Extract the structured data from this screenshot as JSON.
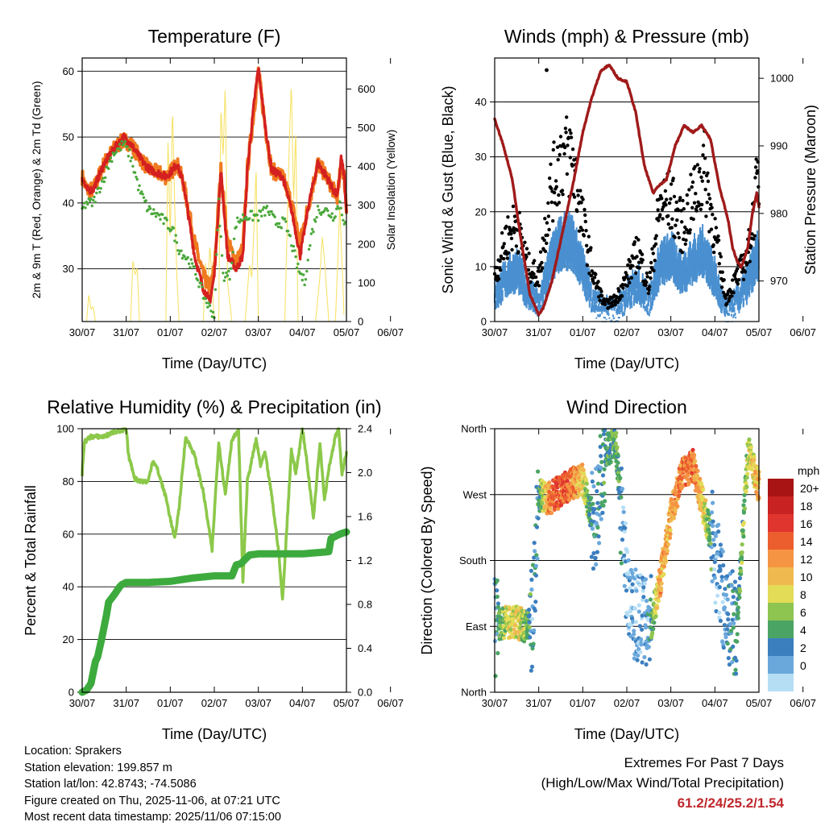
{
  "colors": {
    "temp_2m": "#d42020",
    "temp_9m": "#f07a20",
    "dewpoint": "#4aa83a",
    "insolation": "#f7e36a",
    "wind": "#4a90d0",
    "gust": "#000000",
    "pressure": "#a01a1a",
    "rh": "#8cc84a",
    "rain": "#3daa3d"
  },
  "x_ticks": [
    "30/07",
    "31/07",
    "01/07",
    "02/07",
    "03/07",
    "04/07",
    "05/07",
    "06/07"
  ],
  "x_label": "Time (Day/UTC)",
  "chart_data": [
    {
      "id": "temperature",
      "type": "line",
      "title": "Temperature (F)",
      "ylabel_left": "2m & 9m T (Red, Orange) & 2m Td (Green)",
      "ylabel_right": "Solar Insolation (Yellow)",
      "ylim_left": [
        22,
        62
      ],
      "ylim_right": [
        0,
        680
      ],
      "yticks_left": [
        30,
        40,
        50,
        60
      ],
      "yticks_right": [
        0,
        100,
        200,
        300,
        400,
        500,
        600
      ],
      "series": [
        {
          "name": "2m T",
          "x": [
            0,
            0.1,
            0.25,
            0.5,
            0.75,
            0.95,
            1.1,
            1.25,
            1.4,
            1.55,
            1.75,
            1.9,
            2.05,
            2.15,
            2.3,
            2.55,
            2.75,
            2.9,
            3.0,
            3.15,
            3.3,
            3.5,
            3.65,
            3.75,
            3.9,
            4.0,
            4.15,
            4.3,
            4.55,
            4.75,
            4.95,
            5.15,
            5.35,
            5.55,
            5.7,
            5.8,
            5.88,
            5.95,
            6.0
          ],
          "values": [
            44,
            42,
            42,
            46,
            48.5,
            50,
            49,
            47.5,
            46,
            45,
            44.5,
            44,
            45,
            46,
            43,
            32,
            27,
            25,
            29,
            45,
            32,
            30,
            32,
            45,
            55,
            60.5,
            52,
            45,
            44,
            39,
            32,
            40,
            46,
            44,
            42,
            41,
            47,
            44,
            38
          ]
        },
        {
          "name": "9m T",
          "x": [
            0,
            0.1,
            0.25,
            0.5,
            0.75,
            0.95,
            1.1,
            1.25,
            1.4,
            1.55,
            1.75,
            1.9,
            2.05,
            2.15,
            2.3,
            2.55,
            2.75,
            2.9,
            3.0,
            3.15,
            3.3,
            3.5,
            3.65,
            3.75,
            3.9,
            4.0,
            4.15,
            4.3,
            4.55,
            4.75,
            4.95,
            5.15,
            5.35,
            5.55,
            5.7,
            5.8,
            5.88,
            5.95,
            6.0
          ],
          "values": [
            44,
            42,
            42,
            46,
            48.5,
            49.5,
            49,
            47.5,
            46,
            45,
            44.5,
            44,
            45,
            46,
            43,
            34,
            29,
            27,
            30,
            45,
            34,
            31,
            33,
            45,
            54,
            60,
            52,
            45,
            44,
            40,
            34,
            40,
            46,
            44,
            42,
            41,
            46,
            44,
            39
          ]
        },
        {
          "name": "2m Td",
          "x": [
            0,
            0.1,
            0.25,
            0.5,
            0.7,
            0.95,
            1.1,
            1.3,
            1.5,
            1.75,
            1.9,
            2.05,
            2.2,
            2.45,
            2.6,
            2.75,
            2.9,
            3.0,
            3.1,
            3.2,
            3.35,
            3.5,
            3.7,
            3.85,
            4.0,
            4.2,
            4.4,
            4.6,
            4.75,
            4.9,
            5.05,
            5.2,
            5.35,
            5.5,
            5.7,
            5.85,
            6.0
          ],
          "values": [
            39,
            40,
            40,
            44,
            47.5,
            49,
            47,
            42,
            39,
            38,
            37,
            36,
            33,
            31,
            29,
            26,
            24,
            23,
            40,
            29,
            29,
            37,
            38,
            38,
            38,
            39,
            37,
            37,
            34,
            30,
            28,
            35,
            39,
            39,
            38,
            40,
            36
          ]
        },
        {
          "name": "Solar Insolation",
          "axis": "right",
          "x": [
            0.1,
            0.15,
            0.2,
            0.25,
            0.3,
            1.1,
            1.15,
            1.2,
            1.25,
            1.3,
            1.9,
            1.95,
            2.0,
            2.05,
            2.1,
            2.15,
            2.2,
            2.45,
            2.75,
            2.8,
            2.85,
            2.9,
            3.0,
            3.1,
            3.15,
            3.2,
            3.25,
            3.3,
            3.4,
            3.7,
            3.8,
            3.85,
            3.9,
            3.95,
            4.0,
            4.1,
            4.3,
            4.6,
            4.7,
            4.75,
            4.8,
            4.85,
            4.9,
            5.3,
            5.4,
            5.45,
            5.5,
            5.6,
            5.75,
            5.85,
            5.95
          ],
          "values": [
            0,
            70,
            30,
            40,
            0,
            0,
            160,
            120,
            140,
            0,
            0,
            480,
            200,
            560,
            300,
            120,
            0,
            0,
            0,
            150,
            80,
            200,
            0,
            0,
            560,
            420,
            620,
            100,
            0,
            0,
            150,
            110,
            240,
            400,
            0,
            0,
            0,
            0,
            450,
            620,
            300,
            500,
            0,
            0,
            120,
            220,
            160,
            0,
            0,
            300,
            0
          ]
        }
      ]
    },
    {
      "id": "winds_pressure",
      "type": "scatter",
      "title": "Winds (mph) & Pressure (mb)",
      "ylabel_left": "Sonic Wind & Gust (Blue, Black)",
      "ylabel_right": "Station Pressure (Maroon)",
      "ylim_left": [
        0,
        48
      ],
      "ylim_right": [
        964,
        1003
      ],
      "yticks_left": [
        0,
        10,
        20,
        30,
        40
      ],
      "yticks_right": [
        970,
        980,
        990,
        1000
      ],
      "series": [
        {
          "name": "Station Pressure",
          "type": "line",
          "axis": "right",
          "x": [
            0,
            0.1,
            0.2,
            0.4,
            0.6,
            0.8,
            1.0,
            1.1,
            1.3,
            1.5,
            1.8,
            2.0,
            2.2,
            2.4,
            2.6,
            2.7,
            2.8,
            3.0,
            3.2,
            3.4,
            3.6,
            3.7,
            3.9,
            4.1,
            4.3,
            4.5,
            4.7,
            4.9,
            5.1,
            5.3,
            5.4,
            5.5,
            5.6,
            5.75,
            5.85,
            5.95,
            6.0
          ],
          "values": [
            994,
            992,
            990,
            985,
            976,
            968,
            965,
            966,
            970,
            976,
            985,
            992,
            997,
            1001,
            1002,
            1001,
            1000,
            999.5,
            995,
            987,
            983,
            984,
            985,
            990,
            993,
            992,
            993,
            991,
            984,
            979,
            975,
            973,
            972,
            975,
            980,
            983,
            981
          ]
        },
        {
          "name": "Gust",
          "type": "band",
          "x": [
            0,
            0.25,
            0.5,
            0.75,
            1.0,
            1.25,
            1.5,
            1.75,
            2.0,
            2.25,
            2.5,
            2.75,
            3.0,
            3.25,
            3.5,
            3.75,
            4.0,
            4.25,
            4.5,
            4.75,
            5.0,
            5.25,
            5.5,
            5.75,
            6.0
          ],
          "values": [
            8,
            15,
            18,
            10,
            8,
            23,
            30,
            30,
            18,
            8,
            3,
            4,
            8,
            13,
            6,
            21,
            22,
            17,
            22,
            28,
            16,
            4,
            8,
            12,
            27
          ]
        },
        {
          "name": "Sonic Wind",
          "type": "band",
          "x": [
            0,
            0.25,
            0.5,
            0.75,
            1.0,
            1.25,
            1.5,
            1.75,
            2.0,
            2.25,
            2.5,
            2.75,
            3.0,
            3.25,
            3.5,
            3.75,
            4.0,
            4.25,
            4.5,
            4.75,
            5.0,
            5.25,
            5.5,
            5.75,
            6.0
          ],
          "values": [
            5,
            9,
            11,
            6,
            3,
            12,
            17,
            17,
            11,
            4,
            2,
            2,
            5,
            8,
            4,
            12,
            14,
            10,
            13,
            15,
            9,
            1,
            4,
            8,
            15
          ]
        }
      ]
    },
    {
      "id": "rh_precip",
      "type": "line",
      "title": "Relative Humidity (%) & Precipitation (in)",
      "ylabel_left": "Percent & Total Rainfall",
      "ylim_left": [
        0,
        100
      ],
      "ylim_right": [
        0,
        2.4
      ],
      "yticks_left": [
        0,
        20,
        40,
        60,
        80,
        100
      ],
      "yticks_right": [
        "0.0",
        "0.4",
        "0.8",
        "1.2",
        "1.6",
        "2.0",
        "2.4"
      ],
      "series": [
        {
          "name": "Relative Humidity",
          "x": [
            0,
            0.05,
            0.2,
            0.5,
            0.75,
            0.9,
            1.0,
            1.05,
            1.2,
            1.35,
            1.5,
            1.6,
            1.7,
            1.9,
            2.1,
            2.2,
            2.35,
            2.55,
            2.75,
            2.95,
            3.1,
            3.25,
            3.4,
            3.55,
            3.65,
            3.75,
            3.95,
            4.05,
            4.15,
            4.3,
            4.45,
            4.55,
            4.75,
            4.85,
            5.0,
            5.1,
            5.25,
            5.4,
            5.5,
            5.6,
            5.75,
            5.82,
            5.9,
            6.0
          ],
          "values": [
            83,
            95,
            97,
            97,
            99,
            99,
            100,
            90,
            81,
            80,
            80,
            88,
            85,
            74,
            58,
            70,
            97,
            90,
            76,
            54,
            95,
            75,
            96,
            99,
            42,
            80,
            96,
            86,
            91,
            75,
            55,
            35,
            92,
            83,
            100,
            88,
            66,
            95,
            73,
            85,
            97,
            100,
            83,
            91
          ]
        },
        {
          "name": "Total Rainfall",
          "axis": "right",
          "x": [
            0,
            0.1,
            0.2,
            0.3,
            0.35,
            0.45,
            0.55,
            0.6,
            0.75,
            0.85,
            0.9,
            1.0,
            1.2,
            1.5,
            2.0,
            2.5,
            3.0,
            3.4,
            3.5,
            3.6,
            3.8,
            4.0,
            4.5,
            5.0,
            5.6,
            5.65,
            5.75,
            5.85,
            6.0
          ],
          "values": [
            0,
            0.02,
            0.08,
            0.28,
            0.32,
            0.5,
            0.7,
            0.82,
            0.9,
            0.96,
            0.98,
            1.0,
            1.0,
            1.0,
            1.01,
            1.04,
            1.06,
            1.06,
            1.16,
            1.17,
            1.25,
            1.26,
            1.26,
            1.26,
            1.28,
            1.4,
            1.42,
            1.44,
            1.46
          ]
        }
      ]
    },
    {
      "id": "wind_direction",
      "type": "scatter",
      "title": "Wind Direction",
      "ylabel_left": "Direction (Colored By Speed)",
      "yticks_left": [
        "North",
        "West",
        "South",
        "East",
        "North"
      ],
      "ylim_left": [
        0,
        360
      ],
      "colorbar": {
        "title": "mph",
        "labels": [
          "20+",
          "18",
          "16",
          "14",
          "12",
          "10",
          "8",
          "6",
          "4",
          "2",
          "0"
        ],
        "colors": [
          "#a81414",
          "#c82222",
          "#e0342e",
          "#ec5e2e",
          "#f59443",
          "#f0b950",
          "#e3dc57",
          "#8ec450",
          "#4aa564",
          "#3c7fbf",
          "#6aa8dc",
          "#b5def5"
        ]
      },
      "series": [
        {
          "name": "Direction",
          "x": [
            0,
            0.25,
            0.5,
            0.75,
            0.85,
            1.0,
            1.25,
            1.5,
            1.75,
            2.0,
            2.25,
            2.5,
            2.75,
            3.0,
            3.25,
            3.5,
            3.75,
            4.0,
            4.25,
            4.5,
            4.75,
            5.0,
            5.25,
            5.5,
            5.75,
            6.0
          ],
          "values": [
            90,
            95,
            95,
            90,
            100,
            270,
            265,
            275,
            285,
            290,
            220,
            330,
            340,
            150,
            100,
            80,
            150,
            240,
            300,
            310,
            250,
            190,
            110,
            90,
            330,
            280
          ],
          "speed": [
            4,
            10,
            12,
            8,
            4,
            6,
            16,
            18,
            16,
            12,
            4,
            6,
            8,
            2,
            3,
            4,
            14,
            14,
            16,
            16,
            12,
            3,
            4,
            6,
            10,
            14
          ]
        }
      ]
    }
  ],
  "info": {
    "location": "Location: Sprakers",
    "elevation": "Station elevation: 199.857 m",
    "latlon": "Station lat/lon: 42.8743; -74.5086",
    "created": "Figure created on Thu, 2025-11-06, at 07:21 UTC",
    "recent": "Most recent data timestamp: 2025/11/06 07:15:00"
  },
  "extremes": {
    "line1": "Extremes For Past 7 Days",
    "line2": "(High/Low/Max Wind/Total Precipitation)",
    "values": "61.2/24/25.2/1.54"
  }
}
